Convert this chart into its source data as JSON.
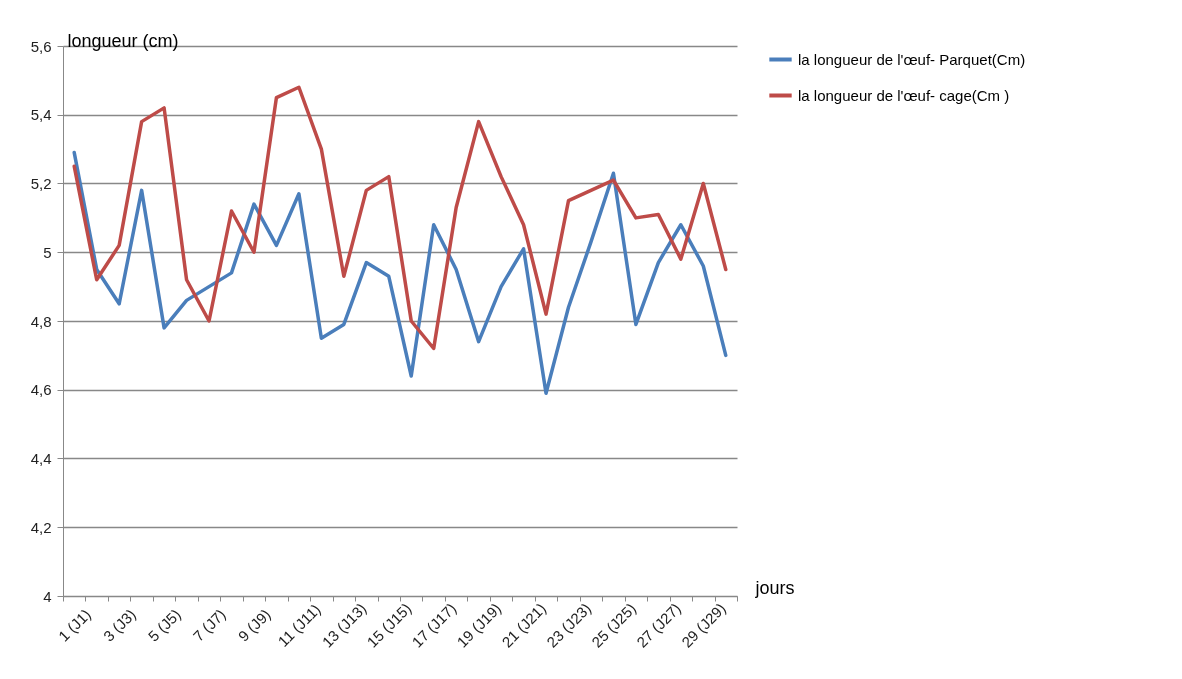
{
  "chart_data": {
    "type": "line",
    "xlabel": "jours",
    "ylabel": "longueur (cm)",
    "categories": [
      "1 (J1)",
      null,
      "3 (J3)",
      null,
      "5 (J5)",
      null,
      "7 (J7)",
      null,
      "9 (J9)",
      null,
      "11 (J11)",
      null,
      "13 (J13)",
      null,
      "15 (J15)",
      null,
      "17 (J17)",
      null,
      "19 (J19)",
      null,
      "21 (J21)",
      null,
      "23 (J23)",
      null,
      "25 (J25)",
      null,
      "27 (J27)",
      null,
      "29 (J29)",
      null
    ],
    "series": [
      {
        "name": "la longueur de l'œuf- Parquet(Cm)",
        "color": "#4a7ebb",
        "values": [
          5.29,
          4.95,
          4.85,
          5.18,
          4.78,
          4.86,
          4.9,
          4.94,
          5.14,
          5.02,
          5.17,
          4.75,
          4.79,
          4.97,
          4.93,
          4.64,
          5.08,
          4.95,
          4.74,
          4.9,
          5.01,
          4.59,
          4.84,
          5.03,
          5.23,
          4.79,
          4.97,
          5.08,
          4.96,
          4.7
        ]
      },
      {
        "name": "la longueur de l'œuf- cage(Cm )",
        "color": "#be4b48",
        "values": [
          5.25,
          4.92,
          5.02,
          5.38,
          5.42,
          4.92,
          4.8,
          5.12,
          5.0,
          5.45,
          5.48,
          5.3,
          4.93,
          5.18,
          5.22,
          4.8,
          4.72,
          5.13,
          5.38,
          5.22,
          5.08,
          4.82,
          5.15,
          5.18,
          5.21,
          5.1,
          5.11,
          4.98,
          5.2,
          4.95
        ]
      }
    ],
    "ylim": [
      4,
      5.6
    ],
    "yticks": [
      4,
      {
        "value": 4.2,
        "label": "4,2"
      },
      {
        "value": 4.4,
        "label": "4,4"
      },
      {
        "value": 4.6,
        "label": "4,6"
      },
      {
        "value": 4.8,
        "label": "4,8"
      },
      5,
      {
        "value": 5.2,
        "label": "5,2"
      },
      {
        "value": 5.4,
        "label": "5,4"
      },
      {
        "value": 5.6,
        "label": "5,6"
      }
    ],
    "grid": "y",
    "legend": "right"
  }
}
